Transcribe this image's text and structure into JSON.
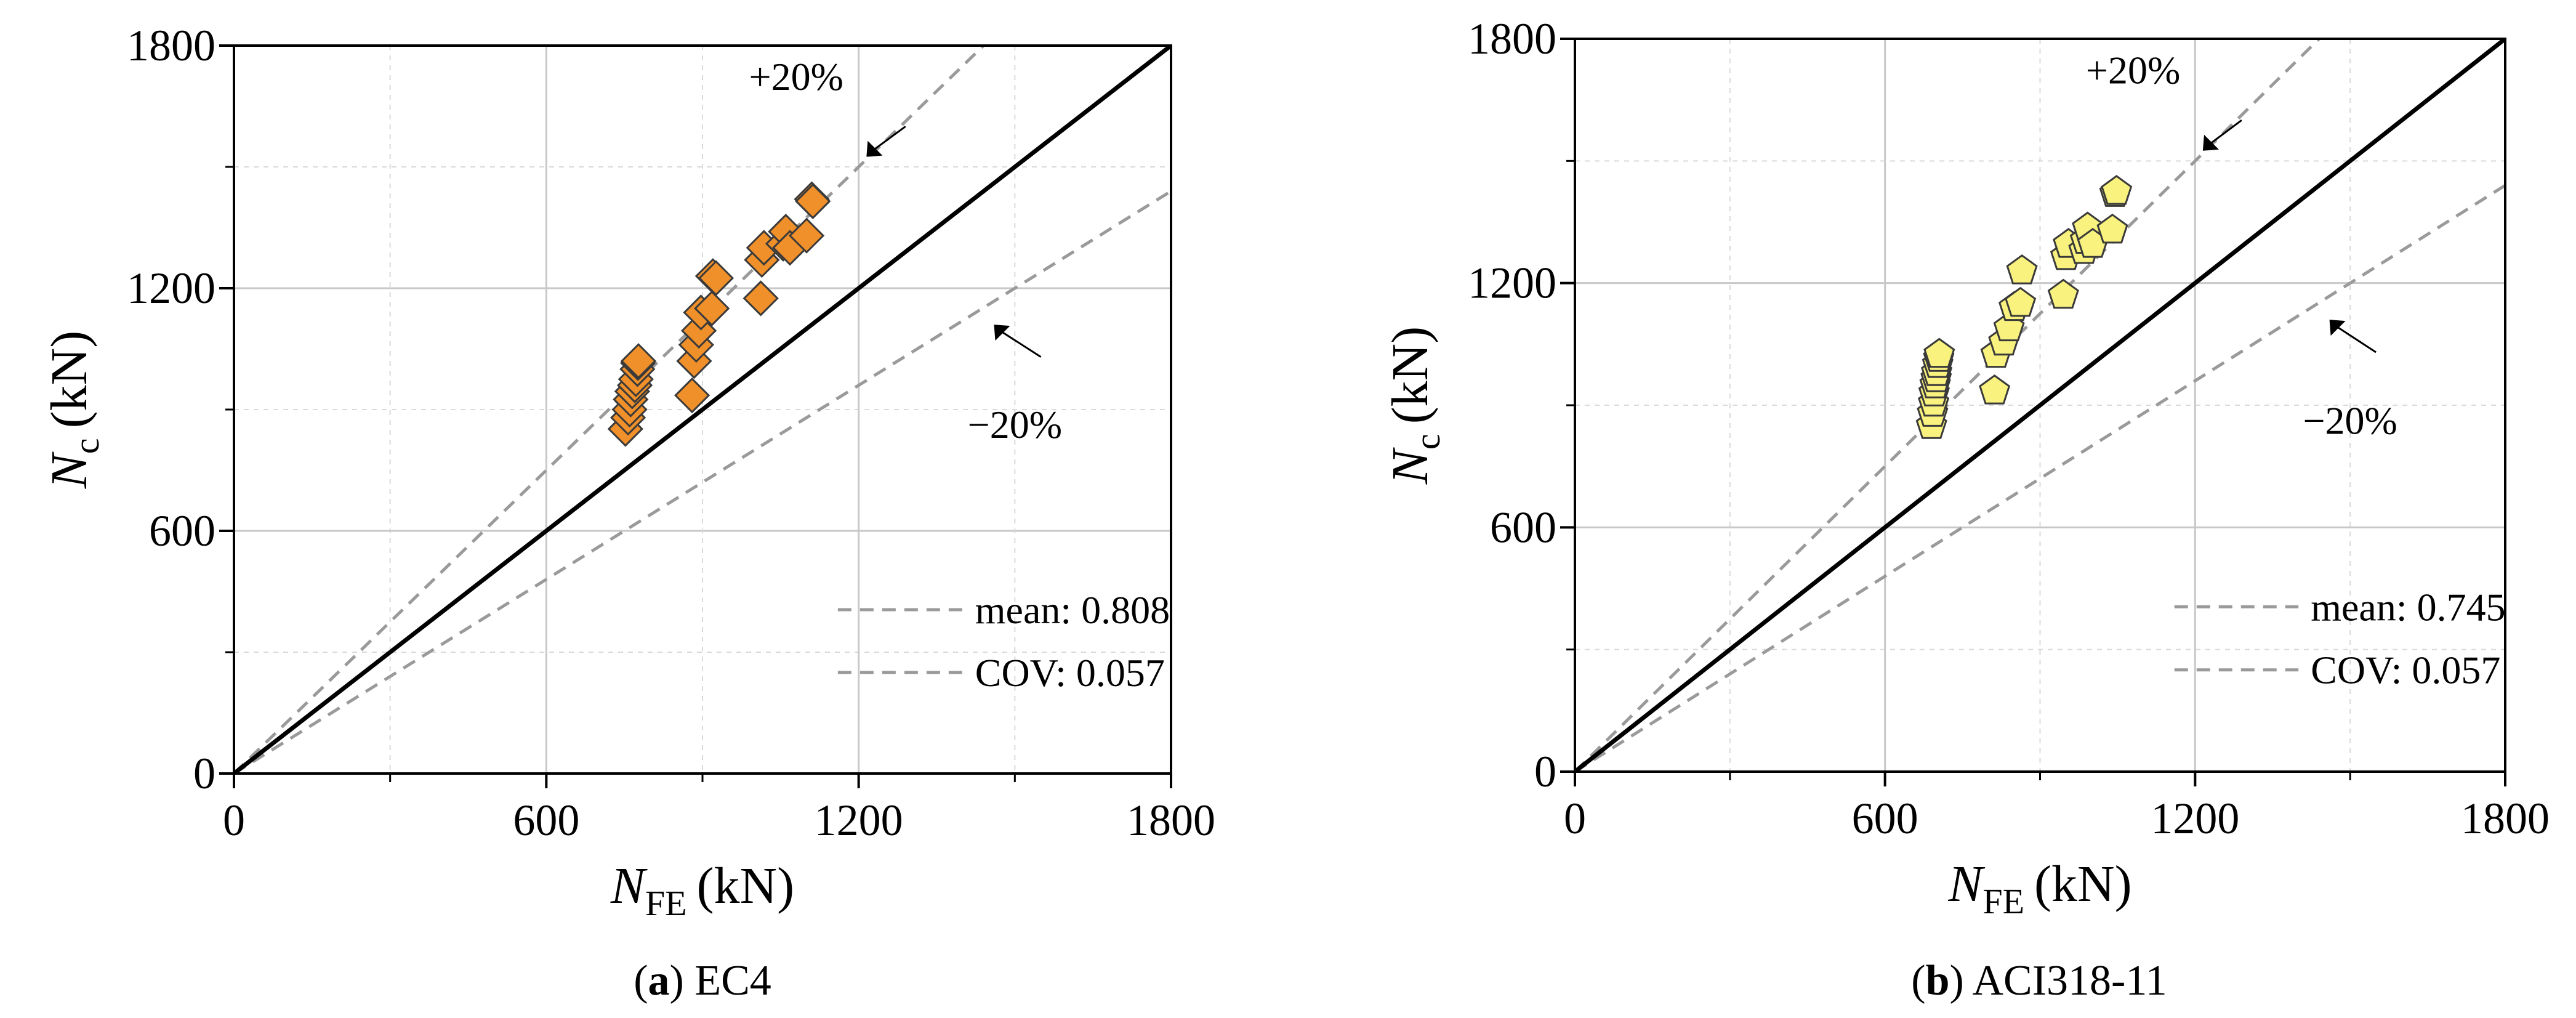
{
  "chart_data": [
    {
      "type": "scatter",
      "panel": "a",
      "caption_letter": "a",
      "caption_text": "EC4",
      "xlabel_main": "N",
      "xlabel_sub": "FE",
      "xlabel_unit": "(kN)",
      "ylabel_main": "N",
      "ylabel_sub": "c",
      "ylabel_unit": "(kN)",
      "xlim": [
        0,
        1800
      ],
      "ylim": [
        0,
        1800
      ],
      "xticks": [
        "0",
        "600",
        "1200",
        "1800"
      ],
      "yticks": [
        "0",
        "600",
        "1200",
        "1800"
      ],
      "grid": true,
      "marker": "diamond",
      "marker_color": "#F0902A",
      "upper_label": "+20%",
      "lower_label": "−20%",
      "legend_mean": "mean: 0.808",
      "legend_cov": "COV: 0.057",
      "x": [
        752,
        757,
        760,
        762,
        765,
        770,
        772,
        775,
        776,
        777,
        880,
        884,
        888,
        893,
        897,
        918,
        920,
        926,
        1012,
        1014,
        1018,
        1055,
        1060,
        1068,
        1100,
        1110,
        1112
      ],
      "y": [
        852,
        880,
        900,
        925,
        945,
        960,
        975,
        1000,
        1015,
        1020,
        935,
        1020,
        1060,
        1095,
        1140,
        1150,
        1230,
        1225,
        1175,
        1270,
        1300,
        1310,
        1340,
        1300,
        1330,
        1420,
        1415
      ]
    },
    {
      "type": "scatter",
      "panel": "b",
      "caption_letter": "b",
      "caption_text": "ACI318-11",
      "xlabel_main": "N",
      "xlabel_sub": "FE",
      "xlabel_unit": "(kN)",
      "ylabel_main": "N",
      "ylabel_sub": "c",
      "ylabel_unit": "(kN)",
      "xlim": [
        0,
        1800
      ],
      "ylim": [
        0,
        1800
      ],
      "xticks": [
        "0",
        "600",
        "1200",
        "1800"
      ],
      "yticks": [
        "0",
        "600",
        "1200",
        "1800"
      ],
      "grid": true,
      "marker": "pentagon",
      "marker_color": "#F9F27E",
      "upper_label": "+20%",
      "lower_label": "−20%",
      "legend_mean": "mean: 0.745",
      "legend_cov": "COV: 0.057",
      "x": [
        690,
        692,
        694,
        695,
        697,
        699,
        700,
        702,
        704,
        705,
        812,
        815,
        830,
        840,
        850,
        862,
        865,
        945,
        950,
        955,
        985,
        988,
        992,
        1002,
        1040,
        1045,
        1048
      ],
      "y": [
        850,
        880,
        905,
        930,
        950,
        965,
        980,
        1000,
        1015,
        1025,
        935,
        1025,
        1055,
        1090,
        1140,
        1150,
        1230,
        1170,
        1265,
        1295,
        1280,
        1305,
        1335,
        1295,
        1330,
        1420,
        1425
      ]
    }
  ]
}
